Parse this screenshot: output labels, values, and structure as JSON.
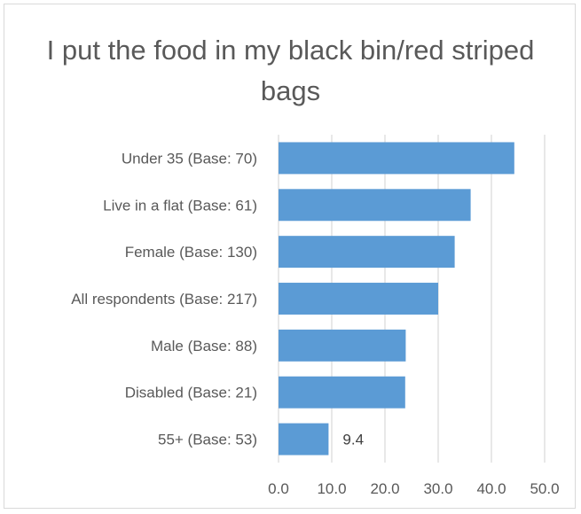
{
  "chart_data": {
    "type": "bar",
    "orientation": "horizontal",
    "title": "I put the food in my black bin/red striped bags",
    "categories": [
      "Under 35 (Base: 70)",
      "Live in a flat (Base: 61)",
      "Female (Base: 130)",
      "All respondents (Base: 217)",
      "Male (Base: 88)",
      "Disabled (Base: 21)",
      "55+ (Base: 53)"
    ],
    "values": [
      44.3,
      36.1,
      33.1,
      30.0,
      23.9,
      23.8,
      9.4
    ],
    "data_labels": [
      null,
      null,
      null,
      null,
      null,
      null,
      "9.4"
    ],
    "xlim": [
      0,
      50
    ],
    "xticks": [
      "0.0",
      "10.0",
      "20.0",
      "30.0",
      "40.0",
      "50.0"
    ],
    "xlabel": "",
    "ylabel": "",
    "grid": true,
    "bar_color": "#5b9bd5",
    "grid_color": "#d9d9d9"
  }
}
